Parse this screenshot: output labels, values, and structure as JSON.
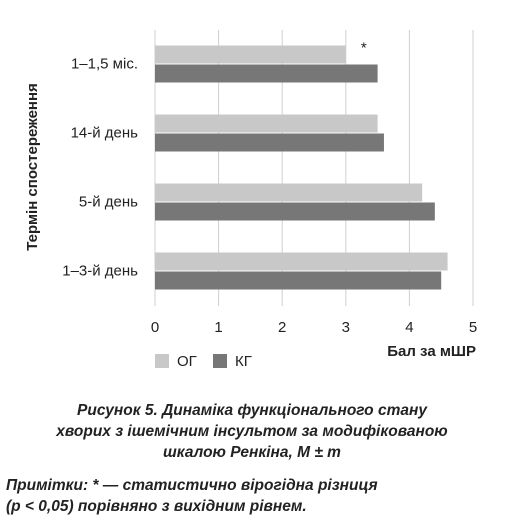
{
  "chart_data": {
    "type": "bar",
    "orientation": "horizontal",
    "categories": [
      "1–1,5 міс.",
      "14-й день",
      "5-й день",
      "1–3-й день"
    ],
    "series": [
      {
        "name": "ОГ",
        "color": "#c8c8c8",
        "values": [
          3.0,
          3.5,
          4.2,
          4.6
        ]
      },
      {
        "name": "КГ",
        "color": "#777777",
        "values": [
          3.5,
          3.6,
          4.4,
          4.5
        ]
      }
    ],
    "xlim": [
      0,
      5
    ],
    "xticks": [
      0,
      1,
      2,
      3,
      4,
      5
    ],
    "grid": true,
    "xlabel": "Бал за мШР",
    "ylabel": "Термін спостереження",
    "annotations": [
      "*"
    ],
    "caption": [
      "Рисунок 5. Динаміка функціонального стану",
      "хворих з ішемічним інсультом за модифікованою",
      "шкалою Ренкіна, M ± m"
    ],
    "notes": [
      "Примітки: * — статистично вірогідна різниця",
      "(p < 0,05) порівняно з вихідним рівнем."
    ]
  }
}
